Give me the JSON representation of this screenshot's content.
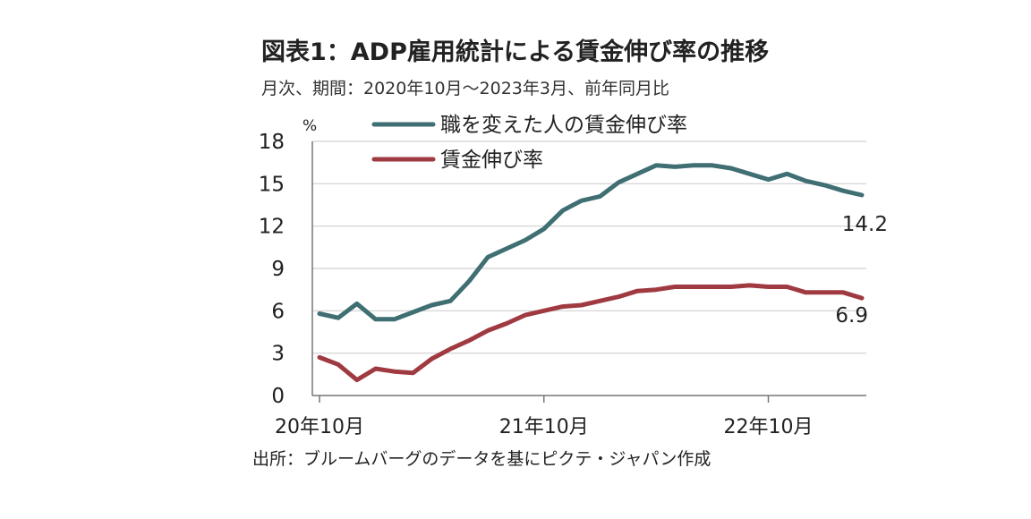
{
  "chart_data": {
    "type": "line",
    "title": "図表1：ADP雇用統計による賃金伸び率の推移",
    "subtitle": "月次、期間：2020年10月～2023年3月、前年同月比",
    "source": "出所：ブルームバーグのデータを基にピクテ・ジャパン作成",
    "ylabel": "%",
    "ylim": [
      0,
      18
    ],
    "yticks": [
      0,
      3,
      6,
      9,
      12,
      15,
      18
    ],
    "x": [
      "2020-10",
      "2020-11",
      "2020-12",
      "2021-01",
      "2021-02",
      "2021-03",
      "2021-04",
      "2021-05",
      "2021-06",
      "2021-07",
      "2021-08",
      "2021-09",
      "2021-10",
      "2021-11",
      "2021-12",
      "2022-01",
      "2022-02",
      "2022-03",
      "2022-04",
      "2022-05",
      "2022-06",
      "2022-07",
      "2022-08",
      "2022-09",
      "2022-10",
      "2022-11",
      "2022-12",
      "2023-01",
      "2023-02",
      "2023-03"
    ],
    "xtick_labels": [
      {
        "x": "2020-10",
        "label": "20年10月"
      },
      {
        "x": "2021-10",
        "label": "21年10月"
      },
      {
        "x": "2022-10",
        "label": "22年10月"
      }
    ],
    "grid": "horizontal",
    "legend_position": "top",
    "series": [
      {
        "name": "職を変えた人の賃金伸び率",
        "color": "#3f6f72",
        "values": [
          5.8,
          5.5,
          6.5,
          5.4,
          5.4,
          5.9,
          6.4,
          6.7,
          8.1,
          9.8,
          10.4,
          11.0,
          11.8,
          13.1,
          13.8,
          14.1,
          15.1,
          15.7,
          16.3,
          16.2,
          16.3,
          16.3,
          16.1,
          15.7,
          15.3,
          15.7,
          15.2,
          14.9,
          14.5,
          14.2
        ],
        "end_label": "14.2"
      },
      {
        "name": "賃金伸び率",
        "color": "#a03a41",
        "values": [
          2.7,
          2.2,
          1.1,
          1.9,
          1.7,
          1.6,
          2.6,
          3.3,
          3.9,
          4.6,
          5.1,
          5.7,
          6.0,
          6.3,
          6.4,
          6.7,
          7.0,
          7.4,
          7.5,
          7.7,
          7.7,
          7.7,
          7.7,
          7.8,
          7.7,
          7.7,
          7.3,
          7.3,
          7.3,
          6.9
        ],
        "end_label": "6.9"
      }
    ]
  }
}
